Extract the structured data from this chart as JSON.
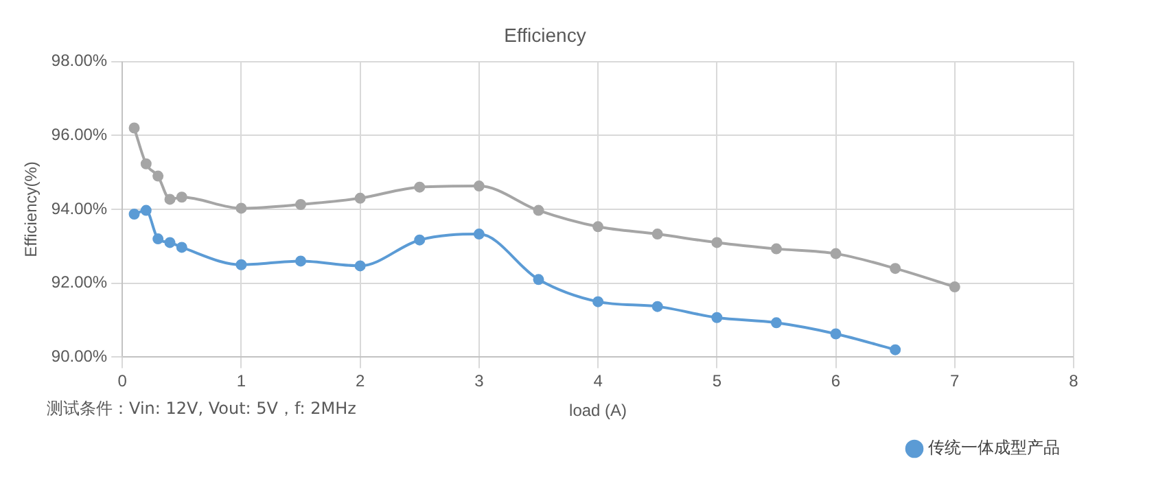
{
  "chart_data": {
    "type": "line",
    "title": "Efficiency",
    "xlabel": "load (A)",
    "ylabel": "Efficiency(%)",
    "x": [
      0.1,
      0.2,
      0.3,
      0.4,
      0.5,
      1,
      1.5,
      2,
      2.5,
      3,
      3.5,
      4,
      4.5,
      5,
      5.5,
      6,
      6.5,
      7
    ],
    "series": [
      {
        "color": "#a5a5a5",
        "values": [
          96.2,
          95.23,
          94.9,
          94.27,
          94.33,
          94.03,
          94.13,
          94.3,
          94.6,
          94.63,
          93.97,
          93.53,
          93.33,
          93.1,
          92.93,
          92.8,
          92.4,
          91.9
        ]
      },
      {
        "name": "传统一体成型产品",
        "color": "#5b9bd5",
        "values": [
          93.87,
          93.97,
          93.2,
          93.1,
          92.97,
          92.5,
          92.6,
          92.47,
          93.17,
          93.33,
          92.1,
          91.5,
          91.37,
          91.07,
          90.93,
          90.63,
          90.2,
          null
        ]
      }
    ],
    "xlim": [
      0,
      8
    ],
    "xticks": [
      0,
      1,
      2,
      3,
      4,
      5,
      6,
      7,
      8
    ],
    "ylim": [
      90,
      98
    ],
    "yticks": [
      {
        "value": 90,
        "label": "90.00%"
      },
      {
        "value": 92,
        "label": "92.00%"
      },
      {
        "value": 94,
        "label": "94.00%"
      },
      {
        "value": 96,
        "label": "96.00%"
      },
      {
        "value": 98,
        "label": "98.00%"
      }
    ],
    "grid": true,
    "legend": "bottom right",
    "marker": "circle",
    "line_style": "solid",
    "annotations": [
      "测试条件：Vin: 12V, Vout: 5V，f: 2MHz"
    ]
  }
}
